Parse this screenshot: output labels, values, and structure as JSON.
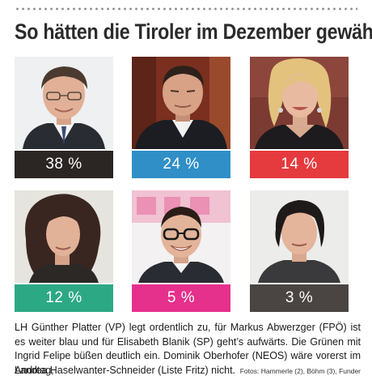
{
  "headline": "So hätten die Tiroler im Dezember gewählt",
  "colors": {
    "vp": "#2b2624",
    "sp": "#2f8fc6",
    "fpo": "#e53a3e",
    "gruene": "#2ca885",
    "neos": "#e5308c",
    "fritz": "#4a4542"
  },
  "candidates": [
    {
      "percent": "38 %",
      "photo_icon": "portrait-man-glasses-icon"
    },
    {
      "percent": "24 %",
      "photo_icon": "portrait-man-suit-icon"
    },
    {
      "percent": "14 %",
      "photo_icon": "portrait-woman-blonde-icon"
    },
    {
      "percent": "12 %",
      "photo_icon": "portrait-woman-curly-hair-icon"
    },
    {
      "percent": "5 %",
      "photo_icon": "portrait-man-dark-glasses-icon"
    },
    {
      "percent": "3 %",
      "photo_icon": "portrait-woman-short-hair-icon"
    }
  ],
  "caption": {
    "body": "LH Günther Platter (VP) legt ordentlich zu, für Markus Abwerzger (FPÖ) ist es weiter blau und für Elisabeth Blanik (SP) geht’s aufwärts. Die Grünen mit Ingrid Felipe büßen deutlich ein. Dominik Oberhofer (NEOS) wäre vorerst im Landtag,",
    "last_line": "Andrea Haselwanter-Schneider (Liste Fritz) nicht.",
    "credit": "Fotos: Hammerle (2), Böhm (3), Funder"
  }
}
